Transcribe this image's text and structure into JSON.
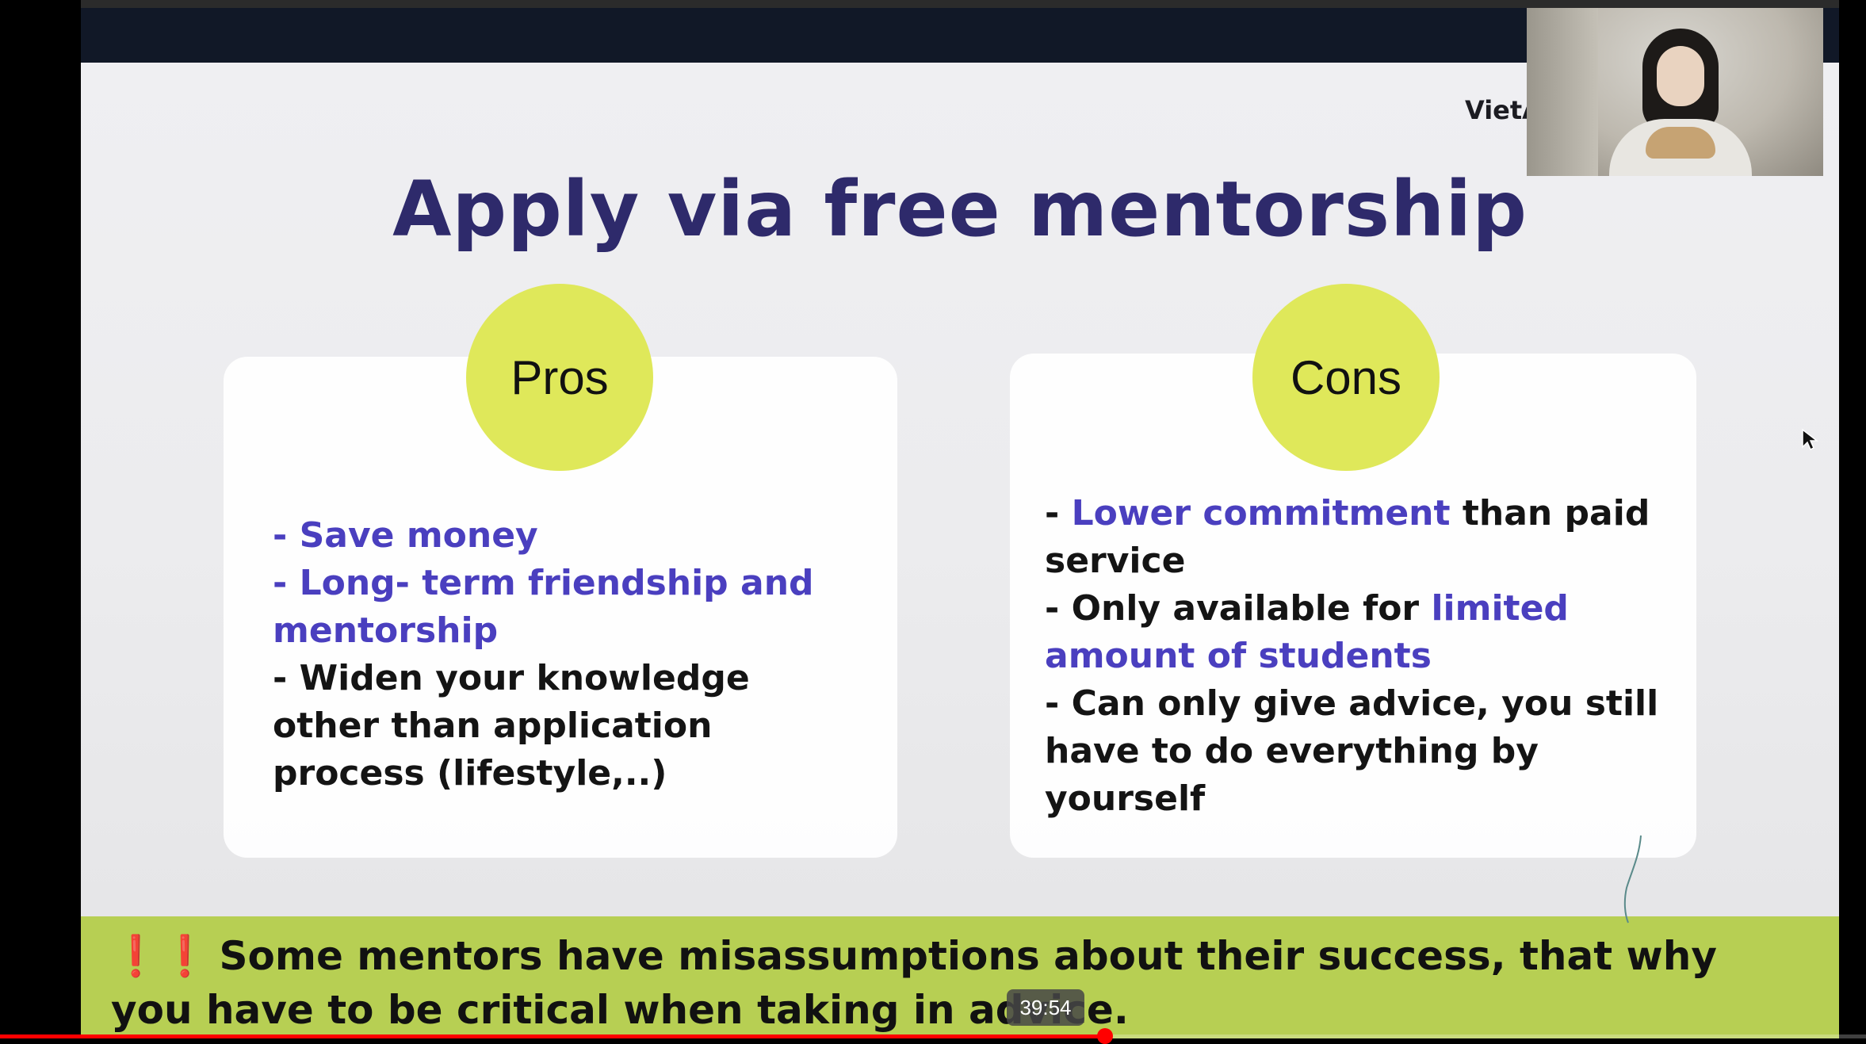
{
  "slide": {
    "brand": "VietA",
    "title": "Apply via free mentorship",
    "pros": {
      "heading": "Pros",
      "items": [
        {
          "prefix": "- ",
          "highlight": "Save money",
          "rest": ""
        },
        {
          "prefix": "- ",
          "highlight": "Long- term friendship and mentorship",
          "rest": ""
        },
        {
          "prefix": "- ",
          "highlight": "",
          "rest": "Widen your knowledge other than application process (lifestyle,..)"
        }
      ]
    },
    "cons": {
      "heading": "Cons",
      "items": [
        {
          "prefix": "- ",
          "highlight": "Lower commitment",
          "rest": " than paid service"
        },
        {
          "prefix": "- ",
          "pre": "Only available for ",
          "highlight": "limited amount of students",
          "rest": ""
        },
        {
          "prefix": "- ",
          "highlight": "",
          "rest": "Can only give advice, you still have to do everything by yourself"
        }
      ]
    },
    "banner": {
      "icon": "double-exclamation-icon",
      "marks": "❗❗",
      "text": "Some mentors have misassumptions about their success, that why you have to be critical when taking in advice."
    }
  },
  "player": {
    "timestamp": "39:54",
    "progress": 0.592
  },
  "colors": {
    "title": "#2e2a6b",
    "highlight": "#4a3fbf",
    "circle": "#dfe85a",
    "banner": "#b7cf53",
    "progress": "#ff0000"
  }
}
